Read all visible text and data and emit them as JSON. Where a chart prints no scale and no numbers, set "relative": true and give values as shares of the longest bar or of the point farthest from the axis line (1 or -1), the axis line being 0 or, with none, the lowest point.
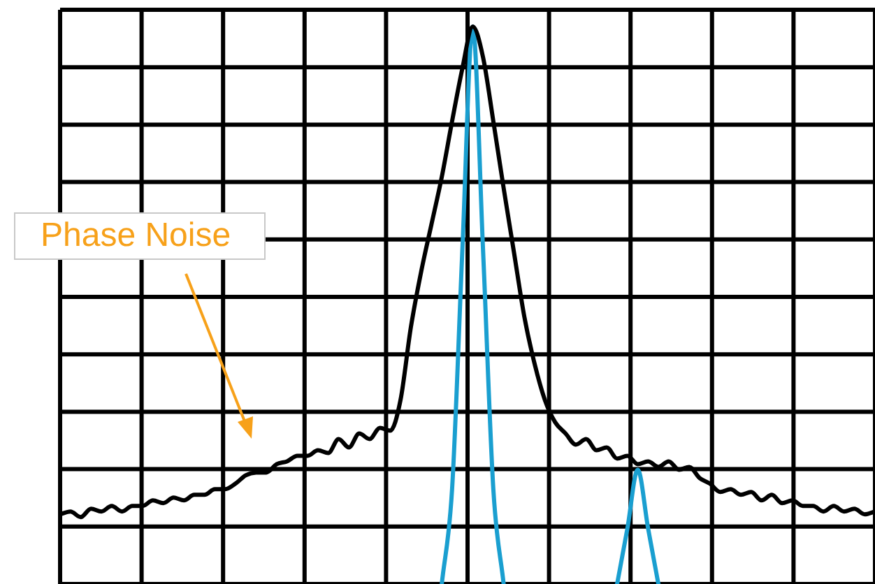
{
  "chart_data": {
    "type": "line",
    "relative": true,
    "grid": true,
    "legend": false,
    "marker": "none",
    "categories": [
      null,
      null,
      null,
      null,
      null,
      null,
      null,
      null,
      null,
      null,
      null,
      null,
      null,
      null,
      null,
      null,
      null,
      null,
      null,
      null,
      null,
      null,
      null,
      null,
      null,
      null,
      null,
      null,
      null,
      null,
      null,
      null,
      null,
      null,
      null,
      null,
      null,
      null,
      null,
      null,
      null,
      null,
      null,
      null,
      null,
      null,
      null,
      null,
      null,
      null,
      null,
      null,
      null,
      null,
      null,
      null,
      null,
      null,
      null,
      null,
      null,
      null,
      null,
      null,
      null,
      null,
      null,
      null,
      null,
      null,
      null,
      null,
      null,
      null,
      null,
      null,
      null,
      null,
      null,
      null
    ],
    "series": [
      {
        "color": "#000000",
        "values": [
          0.125,
          0.13,
          0.12,
          0.135,
          0.13,
          0.14,
          0.13,
          0.14,
          0.14,
          0.15,
          0.145,
          0.155,
          0.15,
          0.16,
          0.16,
          0.17,
          0.17,
          0.18,
          0.195,
          0.2,
          0.2,
          0.215,
          0.22,
          0.23,
          0.23,
          0.24,
          0.235,
          0.26,
          0.245,
          0.27,
          0.26,
          0.28,
          0.275,
          0.33,
          0.46,
          0.56,
          0.645,
          0.73,
          0.83,
          0.925,
          1,
          0.945,
          0.83,
          0.71,
          0.595,
          0.48,
          0.395,
          0.33,
          0.29,
          0.27,
          0.25,
          0.26,
          0.24,
          0.245,
          0.225,
          0.23,
          0.215,
          0.22,
          0.21,
          0.22,
          0.205,
          0.21,
          0.19,
          0.18,
          0.165,
          0.17,
          0.16,
          0.165,
          0.15,
          0.16,
          0.145,
          0.15,
          0.14,
          0.14,
          0.13,
          0.14,
          0.13,
          0.135,
          0.125,
          0.13
        ]
      },
      {
        "color": "#1a9fd0",
        "values": [
          null,
          null,
          null,
          null,
          null,
          null,
          null,
          null,
          null,
          null,
          null,
          null,
          null,
          null,
          null,
          null,
          null,
          null,
          null,
          null,
          null,
          null,
          null,
          null,
          null,
          null,
          null,
          null,
          null,
          null,
          null,
          null,
          null,
          null,
          null,
          null,
          null,
          0,
          0.17,
          0.6,
          1,
          0.6,
          0.17,
          0,
          null,
          null,
          null,
          null,
          null,
          null,
          null,
          null,
          null,
          null,
          0,
          0.1,
          0.205,
          0.1,
          0,
          null,
          null,
          null,
          null,
          null,
          null,
          null,
          null,
          null,
          null,
          null,
          null,
          null,
          null,
          null,
          null,
          null,
          null,
          null,
          null,
          null
        ]
      }
    ],
    "annotations": [
      "Phase Noise"
    ]
  }
}
